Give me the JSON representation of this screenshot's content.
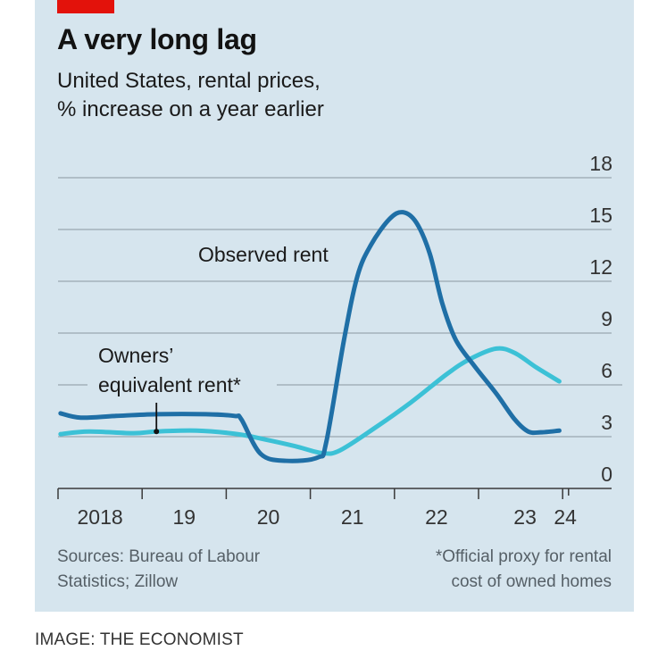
{
  "header": {
    "title": "A very long lag",
    "subtitle_line1": "United States, rental prices,",
    "subtitle_line2": "% increase on a year earlier"
  },
  "footer": {
    "source_line1": "Sources: Bureau of Labour",
    "source_line2": "Statistics; Zillow",
    "footnote_line1": "*Official proxy for rental",
    "footnote_line2": "cost of owned homes",
    "credit": "IMAGE: THE ECONOMIST"
  },
  "colors": {
    "accent_red": "#e3120b",
    "background": "#d6e5ee",
    "observed_rent": "#1f6fa6",
    "owners_equivalent_rent": "#3cc1d6",
    "grid": "#9aa7b0",
    "axis": "#3a3a3a"
  },
  "chart_data": {
    "type": "line",
    "title": "A very long lag",
    "subtitle": "United States, rental prices, % increase on a year earlier",
    "xlabel": "",
    "ylabel": "% increase on a year earlier",
    "xlim": [
      2018,
      2024.15
    ],
    "ylim": [
      0,
      18
    ],
    "y_ticks": [
      0,
      3,
      6,
      9,
      12,
      15,
      18
    ],
    "y_axis_position": "right",
    "x_ticks": [
      2018,
      2019,
      2020,
      2021,
      2022,
      2023,
      2024
    ],
    "x_tick_labels": [
      "2018",
      "19",
      "20",
      "21",
      "22",
      "23",
      "24"
    ],
    "grid": true,
    "series": [
      {
        "name": "Observed rent",
        "label": "Observed rent",
        "color": "#1f6fa6",
        "x": [
          2018.03,
          2018.27,
          2018.69,
          2019.17,
          2019.76,
          2020.1,
          2020.18,
          2020.41,
          2020.71,
          2021.09,
          2021.19,
          2021.4,
          2021.56,
          2021.72,
          2021.94,
          2022.1,
          2022.26,
          2022.42,
          2022.57,
          2022.73,
          2022.95,
          2023.21,
          2023.43,
          2023.59,
          2023.74,
          2023.96
        ],
        "values": [
          4.35,
          4.1,
          4.2,
          4.3,
          4.3,
          4.2,
          4.0,
          2.0,
          1.6,
          1.8,
          2.7,
          8.6,
          12.3,
          14.1,
          15.6,
          16.0,
          15.4,
          13.6,
          10.7,
          8.6,
          7.1,
          5.5,
          4.0,
          3.3,
          3.25,
          3.35
        ]
      },
      {
        "name": "Owners' equivalent rent*",
        "label_line1": "Owners’",
        "label_line2": "equivalent rent*",
        "color": "#3cc1d6",
        "x": [
          2018.03,
          2018.37,
          2018.9,
          2019.17,
          2019.65,
          2020.13,
          2020.45,
          2020.82,
          2021.14,
          2021.35,
          2021.78,
          2022.2,
          2022.63,
          2022.9,
          2023.21,
          2023.43,
          2023.69,
          2023.96
        ],
        "values": [
          3.15,
          3.3,
          3.2,
          3.3,
          3.35,
          3.15,
          2.85,
          2.45,
          2.05,
          2.2,
          3.55,
          5.0,
          6.65,
          7.5,
          8.1,
          7.85,
          7.0,
          6.2
        ]
      }
    ],
    "annotations": [
      {
        "text": "Observed rent",
        "series": "Observed rent"
      },
      {
        "text": "Owners’ equivalent rent*",
        "series": "Owners' equivalent rent*",
        "pointer_x": 2019.17
      }
    ]
  }
}
